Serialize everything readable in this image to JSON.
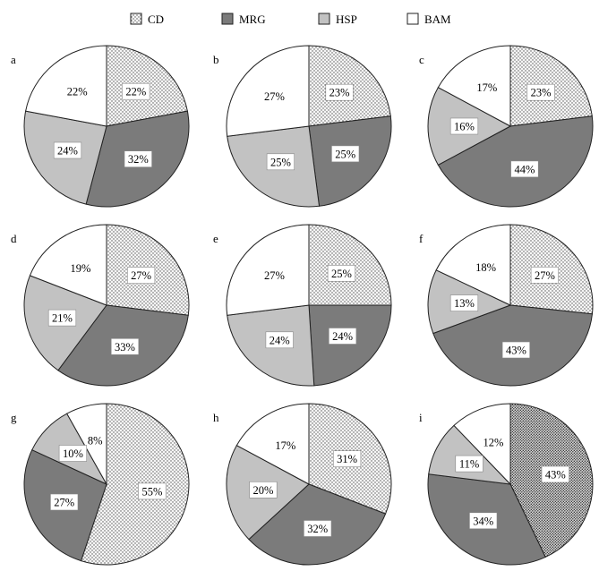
{
  "colors": {
    "CD": "#f0f0f0",
    "MRG": "#7b7b7b",
    "HSP": "#c2c2c2",
    "BAM": "#ffffff",
    "outline": "#222222",
    "background": "#ffffff"
  },
  "legend": [
    {
      "key": "CD",
      "label": "CD",
      "pattern": "dots"
    },
    {
      "key": "MRG",
      "label": "MRG",
      "pattern": "solid"
    },
    {
      "key": "HSP",
      "label": "HSP",
      "pattern": "solid"
    },
    {
      "key": "BAM",
      "label": "BAM",
      "pattern": "solid"
    }
  ],
  "chart_data": [
    {
      "type": "pie",
      "panel": "a",
      "categories": [
        "CD",
        "MRG",
        "HSP",
        "BAM"
      ],
      "values": [
        22,
        32,
        24,
        22
      ],
      "labels": [
        "22%",
        "32%",
        "24%",
        "22%"
      ]
    },
    {
      "type": "pie",
      "panel": "b",
      "categories": [
        "CD",
        "MRG",
        "HSP",
        "BAM"
      ],
      "values": [
        23,
        25,
        25,
        27
      ],
      "labels": [
        "23%",
        "25%",
        "25%",
        "27%"
      ]
    },
    {
      "type": "pie",
      "panel": "c",
      "categories": [
        "CD",
        "MRG",
        "HSP",
        "BAM"
      ],
      "values": [
        23,
        44,
        16,
        17
      ],
      "labels": [
        "23%",
        "44%",
        "16%",
        "17%"
      ]
    },
    {
      "type": "pie",
      "panel": "d",
      "categories": [
        "CD",
        "MRG",
        "HSP",
        "BAM"
      ],
      "values": [
        27,
        33,
        21,
        19
      ],
      "labels": [
        "27%",
        "33%",
        "21%",
        "19%"
      ]
    },
    {
      "type": "pie",
      "panel": "e",
      "categories": [
        "CD",
        "MRG",
        "HSP",
        "BAM"
      ],
      "values": [
        25,
        24,
        24,
        27
      ],
      "labels": [
        "25%",
        "24%",
        "24%",
        "27%"
      ]
    },
    {
      "type": "pie",
      "panel": "f",
      "categories": [
        "CD",
        "MRG",
        "HSP",
        "BAM"
      ],
      "values": [
        27,
        43,
        13,
        18
      ],
      "labels": [
        "27%",
        "43%",
        "13%",
        "18%"
      ]
    },
    {
      "type": "pie",
      "panel": "g",
      "categories": [
        "CD",
        "MRG",
        "HSP",
        "BAM"
      ],
      "values": [
        55,
        27,
        10,
        8
      ],
      "labels": [
        "55%",
        "27%",
        "10%",
        "8%"
      ]
    },
    {
      "type": "pie",
      "panel": "h",
      "categories": [
        "CD",
        "MRG",
        "HSP",
        "BAM"
      ],
      "values": [
        31,
        32,
        20,
        17
      ],
      "labels": [
        "31%",
        "32%",
        "20%",
        "17%"
      ]
    },
    {
      "type": "pie",
      "panel": "i",
      "categories": [
        "CD",
        "MRG",
        "HSP",
        "BAM"
      ],
      "values": [
        43,
        34,
        11,
        12
      ],
      "labels": [
        "43%",
        "34%",
        "11%",
        "12%"
      ],
      "cd_pattern": "dense-dots"
    }
  ]
}
